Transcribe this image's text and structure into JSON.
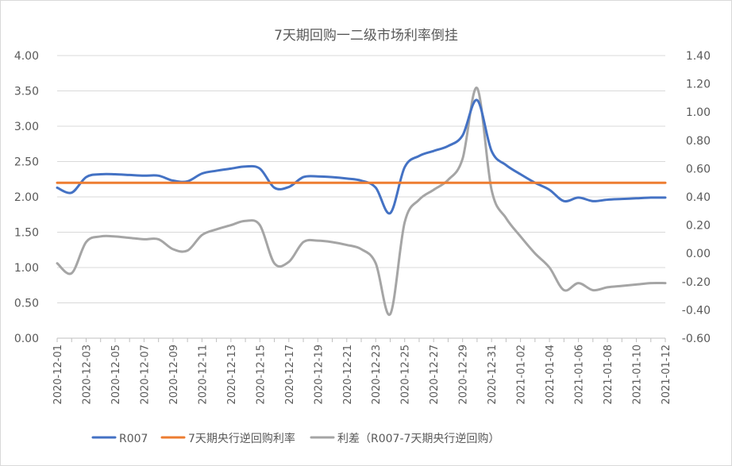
{
  "chart_data": {
    "type": "line",
    "title": "7天期回购一二级市场利率倒挂",
    "x": [
      "2020-12-01",
      "2020-12-02",
      "2020-12-03",
      "2020-12-04",
      "2020-12-05",
      "2020-12-06",
      "2020-12-07",
      "2020-12-08",
      "2020-12-09",
      "2020-12-10",
      "2020-12-11",
      "2020-12-12",
      "2020-12-13",
      "2020-12-14",
      "2020-12-15",
      "2020-12-16",
      "2020-12-17",
      "2020-12-18",
      "2020-12-19",
      "2020-12-20",
      "2020-12-21",
      "2020-12-22",
      "2020-12-23",
      "2020-12-24",
      "2020-12-25",
      "2020-12-26",
      "2020-12-27",
      "2020-12-28",
      "2020-12-29",
      "2020-12-30",
      "2020-12-31",
      "2021-01-01",
      "2021-01-02",
      "2021-01-03",
      "2021-01-04",
      "2021-01-05",
      "2021-01-06",
      "2021-01-07",
      "2021-01-08",
      "2021-01-09",
      "2021-01-10",
      "2021-01-11",
      "2021-01-12"
    ],
    "x_tick_step": 2,
    "y_left": {
      "min": 0,
      "max": 4,
      "step": 0.5,
      "ticks": [
        "0.00",
        "0.50",
        "1.00",
        "1.50",
        "2.00",
        "2.50",
        "3.00",
        "3.50",
        "4.00"
      ]
    },
    "y_right": {
      "min": -0.6,
      "max": 1.4,
      "step": 0.2,
      "ticks": [
        "-0.60",
        "-0.40",
        "-0.20",
        "0.00",
        "0.20",
        "0.40",
        "0.60",
        "0.80",
        "1.00",
        "1.20",
        "1.40"
      ]
    },
    "series": [
      {
        "name": "R007",
        "axis": "left",
        "color": "#4472c4",
        "values": [
          2.13,
          2.06,
          2.28,
          2.32,
          2.32,
          2.31,
          2.3,
          2.3,
          2.23,
          2.22,
          2.33,
          2.37,
          2.4,
          2.43,
          2.4,
          2.13,
          2.14,
          2.28,
          2.29,
          2.28,
          2.26,
          2.23,
          2.13,
          1.77,
          2.42,
          2.58,
          2.65,
          2.72,
          2.87,
          3.37,
          2.65,
          2.45,
          2.32,
          2.2,
          2.1,
          1.94,
          1.99,
          1.94,
          1.96,
          1.97,
          1.98,
          1.99,
          1.99
        ]
      },
      {
        "name": "7天期央行逆回购利率",
        "axis": "left",
        "color": "#ed7d31",
        "values": [
          2.2,
          2.2,
          2.2,
          2.2,
          2.2,
          2.2,
          2.2,
          2.2,
          2.2,
          2.2,
          2.2,
          2.2,
          2.2,
          2.2,
          2.2,
          2.2,
          2.2,
          2.2,
          2.2,
          2.2,
          2.2,
          2.2,
          2.2,
          2.2,
          2.2,
          2.2,
          2.2,
          2.2,
          2.2,
          2.2,
          2.2,
          2.2,
          2.2,
          2.2,
          2.2,
          2.2,
          2.2,
          2.2,
          2.2,
          2.2,
          2.2,
          2.2,
          2.2
        ]
      },
      {
        "name": "利差（R007-7天期央行逆回购）",
        "axis": "right",
        "color": "#a5a5a5",
        "values": [
          -0.07,
          -0.14,
          0.08,
          0.12,
          0.12,
          0.11,
          0.1,
          0.1,
          0.03,
          0.02,
          0.13,
          0.17,
          0.2,
          0.23,
          0.2,
          -0.07,
          -0.06,
          0.08,
          0.09,
          0.08,
          0.06,
          0.03,
          -0.07,
          -0.43,
          0.22,
          0.38,
          0.45,
          0.52,
          0.67,
          1.17,
          0.45,
          0.25,
          0.12,
          0.0,
          -0.1,
          -0.26,
          -0.21,
          -0.26,
          -0.24,
          -0.23,
          -0.22,
          -0.21,
          -0.21
        ]
      }
    ],
    "legend_position": "bottom",
    "grid": true
  }
}
